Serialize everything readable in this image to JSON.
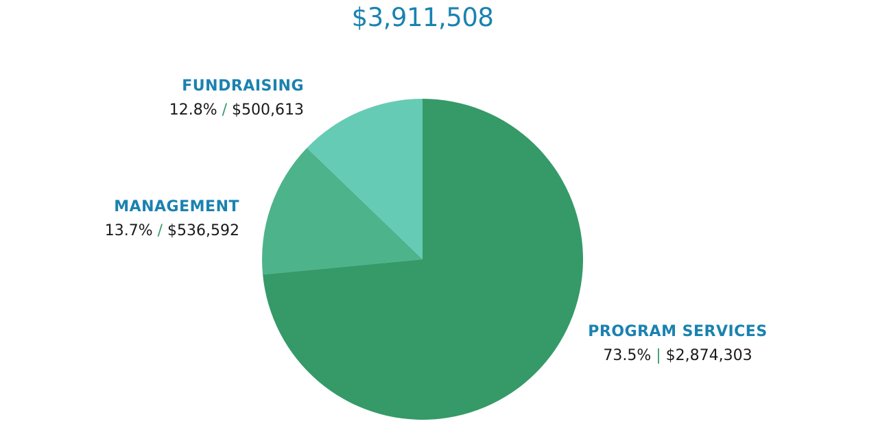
{
  "colors": {
    "accent": "#1a82b0",
    "separator": "#3a9a6a",
    "text": "#1a1a1a"
  },
  "chart_data": {
    "type": "pie",
    "title": "$3,911,508",
    "slices": [
      {
        "label": "PROGRAM SERVICES",
        "percent_label": "73.5%",
        "amount": "$2,874,303",
        "value": 2874303,
        "separator": "|",
        "color": "#359a68"
      },
      {
        "label": "MANAGEMENT",
        "percent_label": "13.7%",
        "amount": "$536,592",
        "value": 536592,
        "separator": "/",
        "color": "#4db38a"
      },
      {
        "label": "FUNDRAISING",
        "percent_label": "12.8%",
        "amount": "$500,613",
        "value": 500613,
        "separator": "/",
        "color": "#66cbb4"
      }
    ]
  }
}
